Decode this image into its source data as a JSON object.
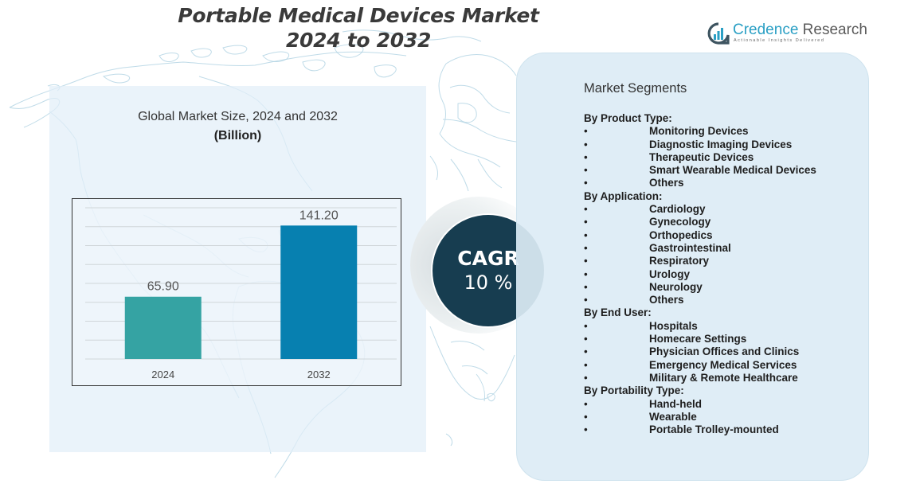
{
  "header": {
    "title_line1": "Portable Medical Devices Market",
    "title_line2": "2024 to 2032"
  },
  "logo": {
    "name_part1": "Credence",
    "name_part2": "Research",
    "tagline": "Actionable Insights Delivered",
    "icon": "bar-chart-speech-bubble-icon",
    "brand_color": "#2a9fc4"
  },
  "chart_panel": {
    "title": "Global Market Size,  2024 and 2032",
    "unit": "(Billion)"
  },
  "chart_data": {
    "type": "bar",
    "title": "Global Market Size,  2024 and 2032",
    "subtitle": "(Billion)",
    "categories": [
      "2024",
      "2032"
    ],
    "values": [
      65.9,
      141.2
    ],
    "value_labels": [
      "65.90",
      "141.20"
    ],
    "colors": [
      "#35a3a3",
      "#0780b0"
    ],
    "xlabel": "",
    "ylabel": "",
    "ylim": [
      0,
      160
    ],
    "grid_step": 20,
    "grid": true,
    "legend": "none"
  },
  "cagr": {
    "label": "CAGR",
    "value": "10 %",
    "color": "#173d50"
  },
  "segments": {
    "heading": "Market Segments",
    "bullet": "•",
    "groups": [
      {
        "title": "By Product Type:",
        "items": [
          "Monitoring Devices",
          "Diagnostic Imaging Devices",
          "Therapeutic Devices",
          "Smart Wearable Medical Devices",
          "Others"
        ]
      },
      {
        "title": "By Application:",
        "items": [
          "Cardiology",
          "Gynecology",
          "Orthopedics",
          "Gastrointestinal",
          "Respiratory",
          "Urology",
          "Neurology",
          "Others"
        ]
      },
      {
        "title": "By End User:",
        "items": [
          "Hospitals",
          "Homecare Settings",
          "Physician Offices  and Clinics",
          "Emergency Medical Services",
          "Military & Remote  Healthcare"
        ]
      },
      {
        "title": "By Portability Type:",
        "items": [
          "Hand-held",
          "Wearable",
          "Portable Trolley-mounted"
        ]
      }
    ]
  }
}
